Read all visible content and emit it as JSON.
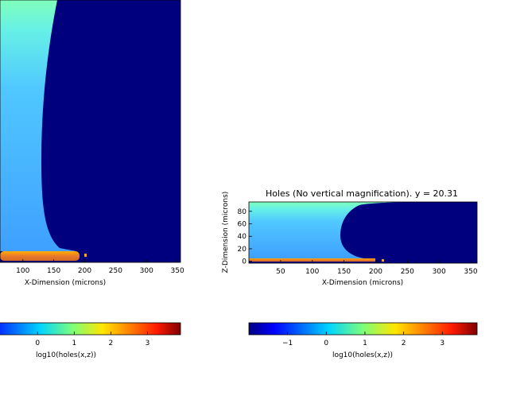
{
  "chart_data": [
    {
      "type": "heatmap",
      "panel": "left (cropped, vertically magnified)",
      "title": "",
      "xlabel": "X-Dimension (microns)",
      "ylabel": "",
      "x_ticks": [
        100,
        150,
        200,
        250,
        300,
        350
      ],
      "xlim": [
        63,
        355
      ],
      "colorbar": {
        "label": "log10(holes(x,z))",
        "ticks": [
          "0",
          "1",
          "2",
          "3"
        ],
        "range": [
          -2,
          3.9
        ]
      },
      "regions": [
        {
          "name": "bulk holes",
          "x_range": [
            63,
            215
          ],
          "log10_value_range": [
            0.2,
            0.8
          ]
        },
        {
          "name": "depleted",
          "x_range": [
            215,
            355
          ],
          "log10_value": -2
        },
        {
          "name": "surface layer",
          "x_range": [
            63,
            199
          ],
          "log10_value": 2.6
        }
      ]
    },
    {
      "type": "heatmap",
      "panel": "right",
      "title": "Holes (No vertical magnification). y = 20.31",
      "xlabel": "X-Dimension (microns)",
      "ylabel": "Z-Dimension (microns)",
      "x_ticks": [
        50,
        100,
        150,
        200,
        250,
        300,
        350
      ],
      "y_ticks": [
        0,
        20,
        40,
        60,
        80
      ],
      "xlim": [
        0,
        360
      ],
      "ylim": [
        -3,
        95
      ],
      "colorbar": {
        "label": "log10(holes(x,z))",
        "ticks": [
          "−1",
          "0",
          "1",
          "2",
          "3"
        ],
        "range": [
          -2,
          3.9
        ]
      },
      "regions": [
        {
          "name": "bulk holes",
          "x_range": [
            0,
            150
          ],
          "z_range": [
            0,
            95
          ],
          "log10_value_range": [
            0.2,
            0.8
          ]
        },
        {
          "name": "depleted",
          "x_range": [
            150,
            360
          ],
          "z_range": [
            -3,
            95
          ],
          "log10_value": -2
        },
        {
          "name": "surface layer",
          "x_range": [
            0,
            200
          ],
          "z_range": [
            -3,
            0
          ],
          "log10_value": 2.6
        },
        {
          "name": "contact",
          "x": 210,
          "z": -1,
          "log10_value": 2.6
        }
      ]
    }
  ],
  "colors": {
    "depleted": "#00007f",
    "surface": "#e07a2c",
    "colormap": "jet"
  }
}
